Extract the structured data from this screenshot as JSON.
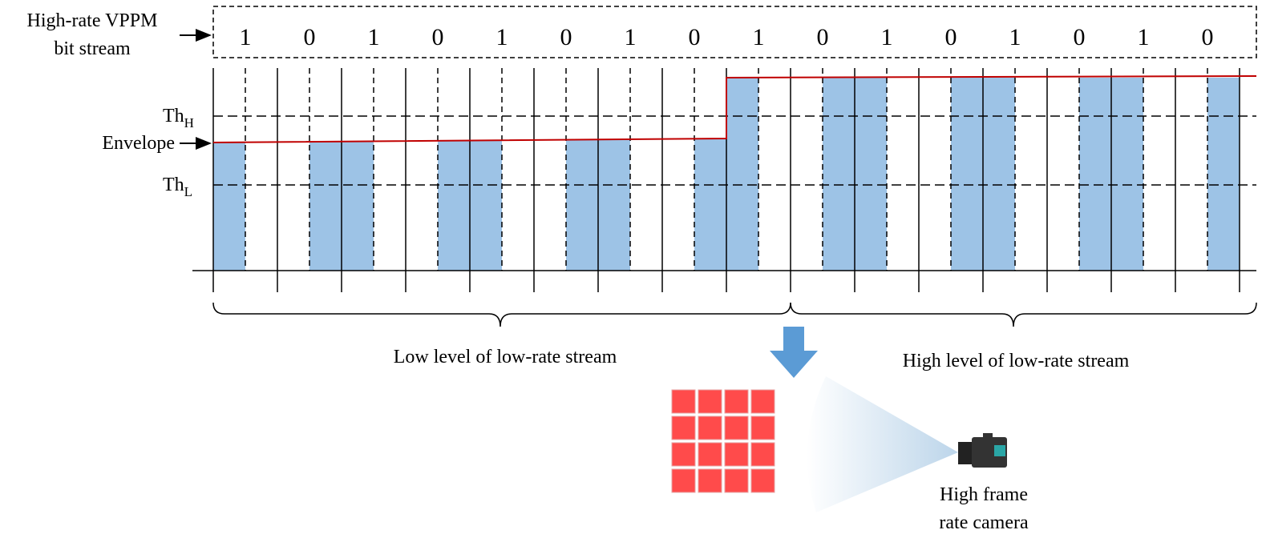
{
  "bit_stream_label": [
    "High-rate VPPM",
    "bit stream"
  ],
  "bits": [
    "1",
    "0",
    "1",
    "0",
    "1",
    "0",
    "1",
    "0",
    "1",
    "0",
    "1",
    "0",
    "1",
    "0",
    "1",
    "0"
  ],
  "thresholds": {
    "high": {
      "base": "Th",
      "sub": "H"
    },
    "low": {
      "base": "Th",
      "sub": "L"
    }
  },
  "envelope_label": "Envelope",
  "segments": [
    "Low level of low-rate stream",
    "High level of low-rate stream"
  ],
  "camera_label": [
    "High frame",
    "rate camera"
  ]
}
